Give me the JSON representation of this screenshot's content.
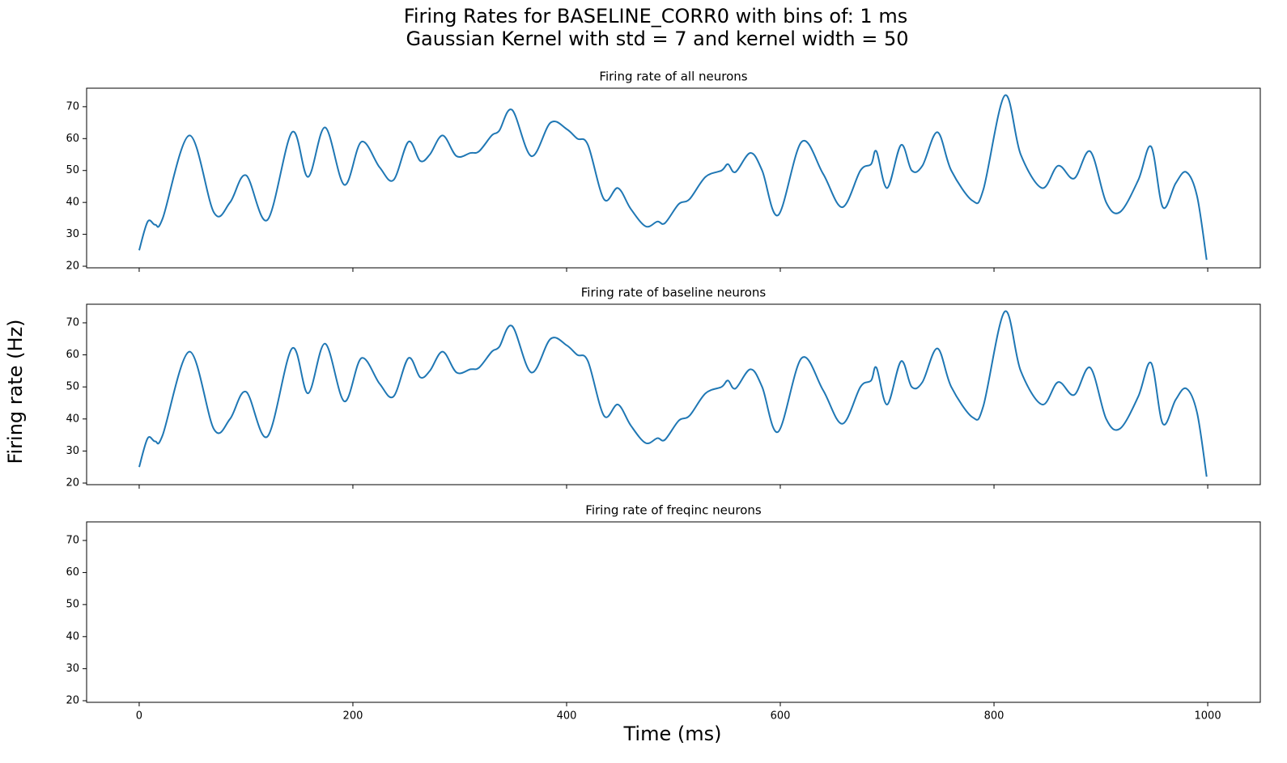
{
  "figure": {
    "title": [
      "Firing Rates for BASELINE_CORR0 with bins of: 1 ms",
      "Gaussian Kernel with std = 7 and kernel width = 50"
    ],
    "xlabel": "Time (ms)",
    "ylabel": "Firing rate (Hz)",
    "xlim": [
      -49.2,
      1049.2
    ],
    "xticks": [
      0,
      200,
      400,
      600,
      800,
      1000
    ]
  },
  "chart_data": [
    {
      "type": "line",
      "title": "Firing rate of all neurons",
      "ylim": [
        19.5,
        75.8
      ],
      "yticks": [
        20,
        30,
        40,
        50,
        60,
        70
      ],
      "series": [
        {
          "color": "#1f77b4",
          "x": [
            0,
            8,
            15,
            22,
            47,
            70,
            85,
            100,
            120,
            143,
            158,
            174,
            192,
            208,
            225,
            238,
            252,
            263,
            272,
            284,
            297,
            310,
            318,
            330,
            337,
            349,
            367,
            385,
            400,
            410,
            420,
            435,
            448,
            460,
            474,
            485,
            492,
            505,
            515,
            530,
            545,
            551,
            558,
            572,
            583,
            598,
            620,
            640,
            658,
            675,
            685,
            690,
            700,
            713,
            723,
            733,
            747,
            760,
            780,
            790,
            810,
            825,
            845,
            860,
            875,
            890,
            905,
            918,
            935,
            947,
            958,
            970,
            980,
            990,
            999
          ],
          "values": [
            25,
            34,
            33,
            35,
            61,
            36.8,
            40,
            48.5,
            34.5,
            62,
            48,
            63.5,
            45.5,
            59,
            51,
            47,
            59,
            53,
            55,
            61,
            54.5,
            55.5,
            56,
            61,
            62.5,
            69,
            54.5,
            65,
            63,
            60,
            58,
            41,
            44.5,
            38,
            32.5,
            34,
            33.5,
            39.5,
            41,
            48,
            50,
            52,
            49.5,
            55.5,
            50,
            36,
            59,
            49,
            38.5,
            50,
            52,
            56,
            44.5,
            58,
            50,
            51.5,
            62,
            50,
            40.5,
            44,
            73.5,
            55,
            44.5,
            51.5,
            47.5,
            56,
            40,
            37,
            47,
            57.5,
            38.5,
            46,
            49.5,
            42,
            22
          ]
        }
      ]
    },
    {
      "type": "line",
      "title": "Firing rate of baseline neurons",
      "ylim": [
        19.5,
        75.8
      ],
      "yticks": [
        20,
        30,
        40,
        50,
        60,
        70
      ],
      "series": [
        {
          "color": "#1f77b4",
          "x": [
            0,
            8,
            15,
            22,
            47,
            70,
            85,
            100,
            120,
            143,
            158,
            174,
            192,
            208,
            225,
            238,
            252,
            263,
            272,
            284,
            297,
            310,
            318,
            330,
            337,
            349,
            367,
            385,
            400,
            410,
            420,
            435,
            448,
            460,
            474,
            485,
            492,
            505,
            515,
            530,
            545,
            551,
            558,
            572,
            583,
            598,
            620,
            640,
            658,
            675,
            685,
            690,
            700,
            713,
            723,
            733,
            747,
            760,
            780,
            790,
            810,
            825,
            845,
            860,
            875,
            890,
            905,
            918,
            935,
            947,
            958,
            970,
            980,
            990,
            999
          ],
          "values": [
            25,
            34,
            33,
            35,
            61,
            36.8,
            40,
            48.5,
            34.5,
            62,
            48,
            63.5,
            45.5,
            59,
            51,
            47,
            59,
            53,
            55,
            61,
            54.5,
            55.5,
            56,
            61,
            62.5,
            69,
            54.5,
            65,
            63,
            60,
            58,
            41,
            44.5,
            38,
            32.5,
            34,
            33.5,
            39.5,
            41,
            48,
            50,
            52,
            49.5,
            55.5,
            50,
            36,
            59,
            49,
            38.5,
            50,
            52,
            56,
            44.5,
            58,
            50,
            51.5,
            62,
            50,
            40.5,
            44,
            73.5,
            55,
            44.5,
            51.5,
            47.5,
            56,
            40,
            37,
            47,
            57.5,
            38.5,
            46,
            49.5,
            42,
            22
          ]
        }
      ]
    },
    {
      "type": "line",
      "title": "Firing rate of freqinc neurons",
      "ylim": [
        19.5,
        75.8
      ],
      "yticks": [
        20,
        30,
        40,
        50,
        60,
        70
      ],
      "series": []
    }
  ]
}
